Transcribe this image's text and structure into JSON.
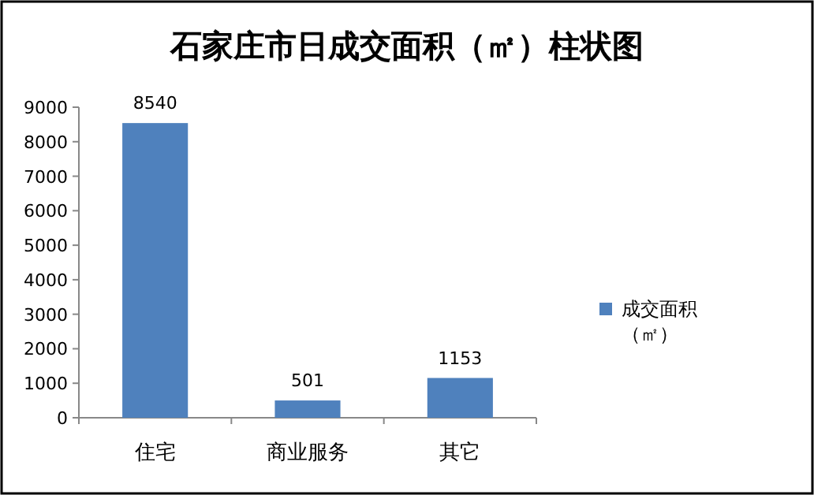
{
  "chart_data": {
    "type": "bar",
    "title": "石家庄市日成交面积（㎡）柱状图",
    "categories": [
      "住宅",
      "商业服务",
      "其它"
    ],
    "series": [
      {
        "name": "成交面积（㎡）",
        "color": "#4f81bd",
        "values": [
          8540,
          501,
          1153
        ]
      }
    ],
    "ylim": [
      0,
      9000
    ],
    "yticks": [
      0,
      1000,
      2000,
      3000,
      4000,
      5000,
      6000,
      7000,
      8000,
      9000
    ],
    "data_labels": true,
    "legend": "right"
  }
}
